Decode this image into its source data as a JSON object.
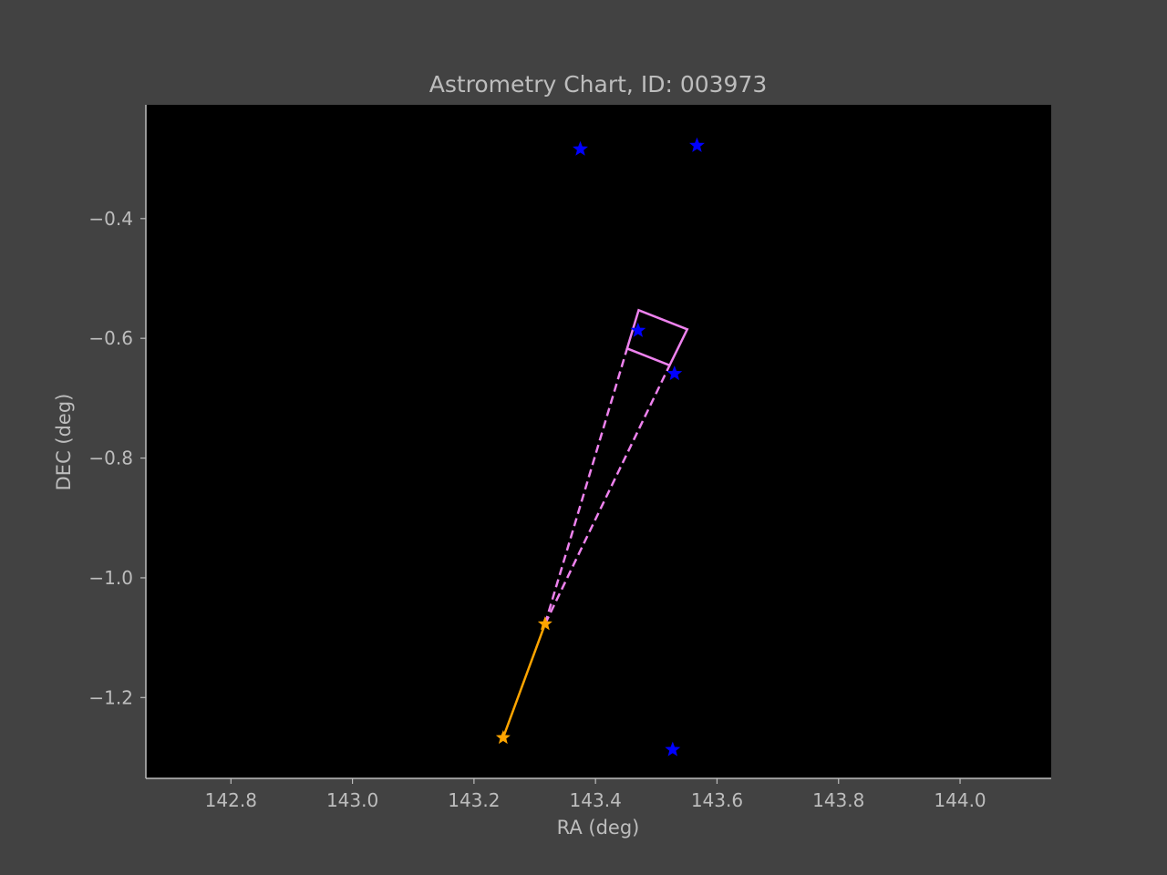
{
  "colors": {
    "figure_bg": "#424242",
    "axes_bg": "#000000",
    "text": "#bdbdbd",
    "spine": "#bdbdbd",
    "stars": "#0000ff",
    "trajectory": "#ffa500",
    "fov": "#ee82ee"
  },
  "chart_data": {
    "type": "scatter",
    "title": "Astrometry Chart, ID: 003973",
    "xlabel": "RA (deg)",
    "ylabel": "DEC (deg)",
    "xlim": [
      142.66,
      144.15
    ],
    "ylim": [
      -1.335,
      -0.21
    ],
    "grid": false,
    "xticks": [
      142.8,
      143.0,
      143.2,
      143.4,
      143.6,
      143.8,
      144.0
    ],
    "xtick_labels": [
      "142.8",
      "143.0",
      "143.2",
      "143.4",
      "143.6",
      "143.8",
      "144.0"
    ],
    "yticks": [
      -0.4,
      -0.6,
      -0.8,
      -1.0,
      -1.2
    ],
    "ytick_labels": [
      "−0.4",
      "−0.6",
      "−0.8",
      "−1.0",
      "−1.2"
    ],
    "series": [
      {
        "kind": "stars",
        "marker": "star",
        "color": "#0000ff",
        "points": [
          {
            "x": 143.375,
            "y": -0.284
          },
          {
            "x": 143.567,
            "y": -0.278
          },
          {
            "x": 143.47,
            "y": -0.587
          },
          {
            "x": 143.53,
            "y": -0.659
          },
          {
            "x": 143.527,
            "y": -1.287
          }
        ]
      },
      {
        "kind": "trajectory",
        "marker": "star",
        "color": "#ffa500",
        "points": [
          {
            "x": 143.248,
            "y": -1.267
          },
          {
            "x": 143.317,
            "y": -1.077
          }
        ]
      },
      {
        "kind": "fov",
        "color": "#ee82ee",
        "polygon": [
          {
            "x": 143.471,
            "y": -0.553
          },
          {
            "x": 143.551,
            "y": -0.585
          },
          {
            "x": 143.522,
            "y": -0.645
          },
          {
            "x": 143.452,
            "y": -0.617
          }
        ],
        "rays_from": {
          "x": 143.317,
          "y": -1.077
        },
        "rays_to": [
          {
            "x": 143.452,
            "y": -0.617
          },
          {
            "x": 143.522,
            "y": -0.645
          }
        ]
      }
    ]
  }
}
